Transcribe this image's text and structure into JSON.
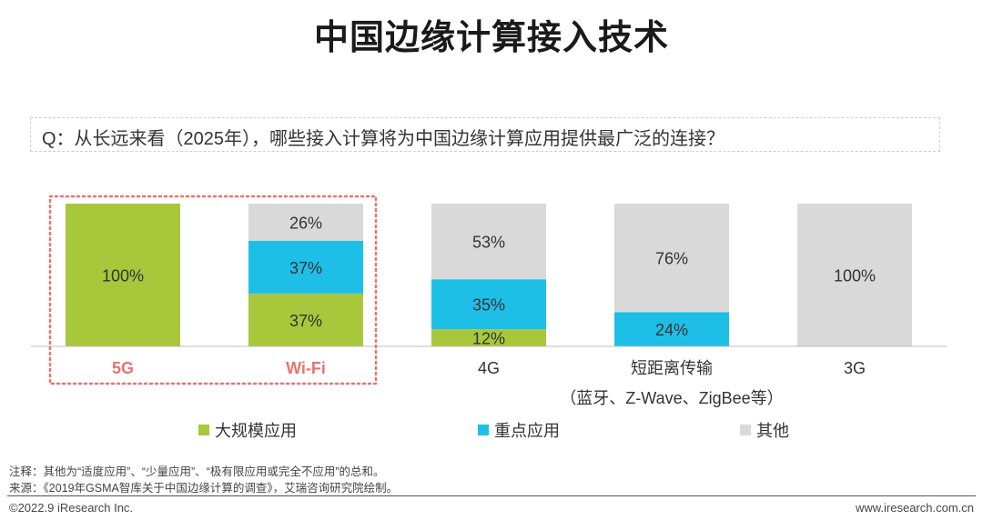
{
  "title": "中国边缘计算接入技术",
  "question": "Q：从长远来看（2025年），哪些接入计算将为中国边缘计算应用提供最广泛的连接？",
  "colors": {
    "large_scale": "#a8c73a",
    "key": "#1ebfe6",
    "other": "#d9d9d9",
    "highlight_label": "#e8736e",
    "highlight_box": "#e8736e"
  },
  "chart_data": {
    "type": "bar",
    "stacked": true,
    "categories": [
      "5G",
      "Wi-Fi",
      "4G",
      "短距离传输",
      "3G"
    ],
    "category_sublabels": [
      "",
      "",
      "",
      "（蓝牙、Z-Wave、ZigBee等）",
      ""
    ],
    "highlighted_categories": [
      "5G",
      "Wi-Fi"
    ],
    "value_suffix": "%",
    "ylim": [
      0,
      100
    ],
    "series": [
      {
        "name": "大规模应用",
        "values": [
          100,
          37,
          12,
          0,
          0
        ]
      },
      {
        "name": "重点应用",
        "values": [
          0,
          37,
          35,
          24,
          0
        ]
      },
      {
        "name": "其他",
        "values": [
          0,
          26,
          53,
          76,
          100
        ]
      }
    ],
    "legend_position": "bottom"
  },
  "legend": [
    {
      "label": "大规模应用",
      "color": "#a8c73a"
    },
    {
      "label": "重点应用",
      "color": "#1ebfe6"
    },
    {
      "label": "其他",
      "color": "#d9d9d9"
    }
  ],
  "notes": {
    "note1": "注释：其他为“适度应用”、“少量应用”、“极有限应用或完全不应用”的总和。",
    "note2": "来源：《2019年GSMA智库关于中国边缘计算的调查》，艾瑞咨询研究院绘制。"
  },
  "footer": {
    "left": "©2022.9 iResearch Inc.",
    "right": "www.iresearch.com.cn"
  }
}
